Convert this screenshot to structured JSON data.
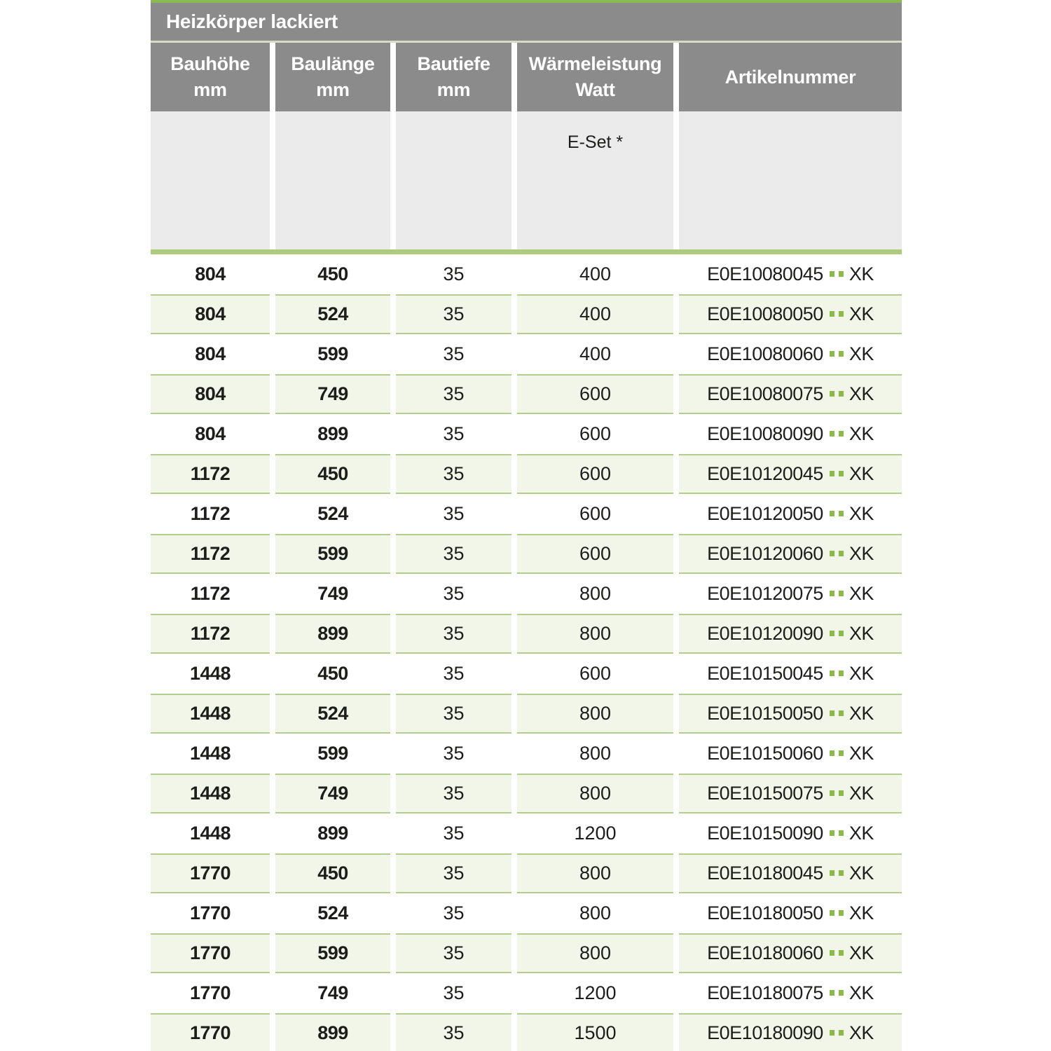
{
  "table": {
    "title": "Heizkörper lackiert",
    "columns": [
      {
        "line1": "Bauhöhe",
        "line2": "mm"
      },
      {
        "line1": "Baulänge",
        "line2": "mm"
      },
      {
        "line1": "Bautiefe",
        "line2": "mm"
      },
      {
        "line1": "Wärmeleistung",
        "line2": "Watt"
      },
      {
        "line1": "Artikelnummer",
        "line2": ""
      }
    ],
    "subheader": {
      "eset_label": "E-Set *"
    },
    "rows": [
      {
        "bauhoehe": "804",
        "baulaenge": "450",
        "bautiefe": "35",
        "waermeleistung": "400",
        "artikelnummer_base": "E0E10080045",
        "artikelnummer_suffix": "XK"
      },
      {
        "bauhoehe": "804",
        "baulaenge": "524",
        "bautiefe": "35",
        "waermeleistung": "400",
        "artikelnummer_base": "E0E10080050",
        "artikelnummer_suffix": "XK"
      },
      {
        "bauhoehe": "804",
        "baulaenge": "599",
        "bautiefe": "35",
        "waermeleistung": "400",
        "artikelnummer_base": "E0E10080060",
        "artikelnummer_suffix": "XK"
      },
      {
        "bauhoehe": "804",
        "baulaenge": "749",
        "bautiefe": "35",
        "waermeleistung": "600",
        "artikelnummer_base": "E0E10080075",
        "artikelnummer_suffix": "XK"
      },
      {
        "bauhoehe": "804",
        "baulaenge": "899",
        "bautiefe": "35",
        "waermeleistung": "600",
        "artikelnummer_base": "E0E10080090",
        "artikelnummer_suffix": "XK"
      },
      {
        "bauhoehe": "1172",
        "baulaenge": "450",
        "bautiefe": "35",
        "waermeleistung": "600",
        "artikelnummer_base": "E0E10120045",
        "artikelnummer_suffix": "XK"
      },
      {
        "bauhoehe": "1172",
        "baulaenge": "524",
        "bautiefe": "35",
        "waermeleistung": "600",
        "artikelnummer_base": "E0E10120050",
        "artikelnummer_suffix": "XK"
      },
      {
        "bauhoehe": "1172",
        "baulaenge": "599",
        "bautiefe": "35",
        "waermeleistung": "600",
        "artikelnummer_base": "E0E10120060",
        "artikelnummer_suffix": "XK"
      },
      {
        "bauhoehe": "1172",
        "baulaenge": "749",
        "bautiefe": "35",
        "waermeleistung": "800",
        "artikelnummer_base": "E0E10120075",
        "artikelnummer_suffix": "XK"
      },
      {
        "bauhoehe": "1172",
        "baulaenge": "899",
        "bautiefe": "35",
        "waermeleistung": "800",
        "artikelnummer_base": "E0E10120090",
        "artikelnummer_suffix": "XK"
      },
      {
        "bauhoehe": "1448",
        "baulaenge": "450",
        "bautiefe": "35",
        "waermeleistung": "600",
        "artikelnummer_base": "E0E10150045",
        "artikelnummer_suffix": "XK"
      },
      {
        "bauhoehe": "1448",
        "baulaenge": "524",
        "bautiefe": "35",
        "waermeleistung": "800",
        "artikelnummer_base": "E0E10150050",
        "artikelnummer_suffix": "XK"
      },
      {
        "bauhoehe": "1448",
        "baulaenge": "599",
        "bautiefe": "35",
        "waermeleistung": "800",
        "artikelnummer_base": "E0E10150060",
        "artikelnummer_suffix": "XK"
      },
      {
        "bauhoehe": "1448",
        "baulaenge": "749",
        "bautiefe": "35",
        "waermeleistung": "800",
        "artikelnummer_base": "E0E10150075",
        "artikelnummer_suffix": "XK"
      },
      {
        "bauhoehe": "1448",
        "baulaenge": "899",
        "bautiefe": "35",
        "waermeleistung": "1200",
        "artikelnummer_base": "E0E10150090",
        "artikelnummer_suffix": "XK"
      },
      {
        "bauhoehe": "1770",
        "baulaenge": "450",
        "bautiefe": "35",
        "waermeleistung": "800",
        "artikelnummer_base": "E0E10180045",
        "artikelnummer_suffix": "XK"
      },
      {
        "bauhoehe": "1770",
        "baulaenge": "524",
        "bautiefe": "35",
        "waermeleistung": "800",
        "artikelnummer_base": "E0E10180050",
        "artikelnummer_suffix": "XK"
      },
      {
        "bauhoehe": "1770",
        "baulaenge": "599",
        "bautiefe": "35",
        "waermeleistung": "800",
        "artikelnummer_base": "E0E10180060",
        "artikelnummer_suffix": "XK"
      },
      {
        "bauhoehe": "1770",
        "baulaenge": "749",
        "bautiefe": "35",
        "waermeleistung": "1200",
        "artikelnummer_base": "E0E10180075",
        "artikelnummer_suffix": "XK"
      },
      {
        "bauhoehe": "1770",
        "baulaenge": "899",
        "bautiefe": "35",
        "waermeleistung": "1500",
        "artikelnummer_base": "E0E10180090",
        "artikelnummer_suffix": "XK"
      }
    ]
  },
  "colors": {
    "header_gray": "#8b8b8b",
    "accent_green_top_line": "#8cba52",
    "pale_line": "#d8ddc1",
    "subheader_gray": "#ebebeb",
    "separator_green": "#aecb7d",
    "row_green_bg": "#f2f6e9",
    "row_green_border": "#b3cd8c",
    "article_dot_green": "#8cba4a",
    "text_dark": "#1d1d1b"
  }
}
